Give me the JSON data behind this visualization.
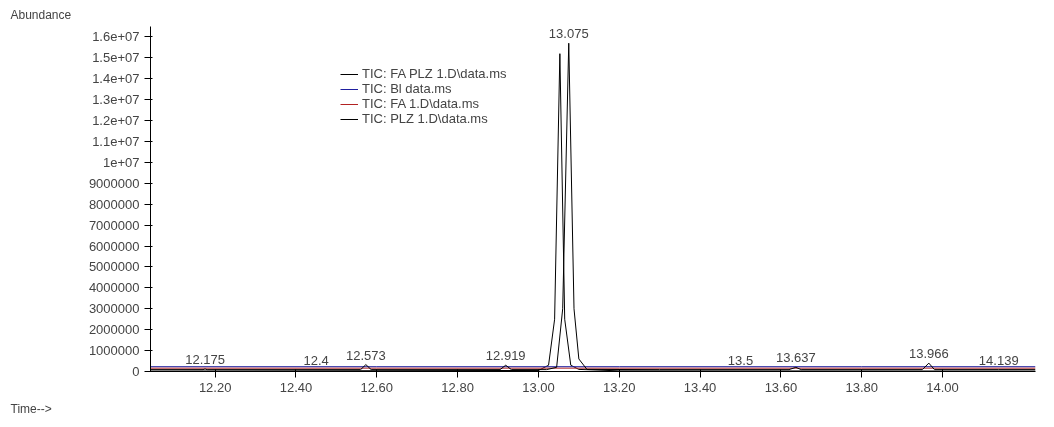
{
  "chart_data": {
    "type": "line",
    "xlabel": "Time-->",
    "series": [
      {
        "name": "TIC: FA PLZ 1.D\\data.ms",
        "color": "#000000",
        "x": [
          12.04,
          12.17,
          12.175,
          12.18,
          12.56,
          12.573,
          12.586,
          12.905,
          12.919,
          12.933,
          13.02,
          13.045,
          13.06,
          13.075,
          13.088,
          13.1,
          13.12,
          13.3,
          13.62,
          13.637,
          13.65,
          13.95,
          13.966,
          13.98,
          14.139,
          14.23
        ],
        "values": [
          90000,
          90000,
          120000,
          90000,
          90000,
          330000,
          90000,
          90000,
          300000,
          90000,
          90000,
          200000,
          3000000,
          15700000,
          3000000,
          600000,
          100000,
          90000,
          90000,
          200000,
          90000,
          90000,
          400000,
          90000,
          90000,
          90000
        ]
      },
      {
        "name": "TIC: Bl data.ms",
        "color": "#1f1f9f",
        "x": [
          12.04,
          12.6,
          13.2,
          13.8,
          14.23
        ],
        "values": [
          230000,
          230000,
          230000,
          230000,
          230000
        ]
      },
      {
        "name": "TIC: FA 1.D\\data.ms",
        "color": "#b22222",
        "x": [
          12.04,
          12.6,
          13.2,
          13.8,
          14.23
        ],
        "values": [
          160000,
          160000,
          160000,
          160000,
          160000
        ]
      },
      {
        "name": "TIC: PLZ 1.D\\data.ms",
        "color": "#000000",
        "x": [
          12.04,
          13.0,
          13.025,
          13.04,
          13.053,
          13.065,
          13.08,
          13.1,
          13.2,
          14.23
        ],
        "values": [
          20000,
          50000,
          300000,
          2500000,
          15200000,
          2500000,
          300000,
          100000,
          30000,
          20000
        ]
      }
    ],
    "xlim": [
      12.04,
      14.23
    ],
    "xticks": [
      {
        "value": 12.2,
        "label": "12.20"
      },
      {
        "value": 12.4,
        "label": "12.40"
      },
      {
        "value": 12.6,
        "label": "12.60"
      },
      {
        "value": 12.8,
        "label": "12.80"
      },
      {
        "value": 13.0,
        "label": "13.00"
      },
      {
        "value": 13.2,
        "label": "13.20"
      },
      {
        "value": 13.4,
        "label": "13.40"
      },
      {
        "value": 13.6,
        "label": "13.60"
      },
      {
        "value": 13.8,
        "label": "13.80"
      },
      {
        "value": 14.0,
        "label": "14.00"
      }
    ],
    "ylim": [
      0,
      16500000
    ],
    "yticks": [
      {
        "value": 0,
        "label": "0"
      },
      {
        "value": 1000000,
        "label": "1000000"
      },
      {
        "value": 2000000,
        "label": "2000000"
      },
      {
        "value": 3000000,
        "label": "3000000"
      },
      {
        "value": 4000000,
        "label": "4000000"
      },
      {
        "value": 5000000,
        "label": "5000000"
      },
      {
        "value": 6000000,
        "label": "6000000"
      },
      {
        "value": 7000000,
        "label": "7000000"
      },
      {
        "value": 8000000,
        "label": "8000000"
      },
      {
        "value": 9000000,
        "label": "9000000"
      },
      {
        "value": 10000000,
        "label": "1e+07"
      },
      {
        "value": 11000000,
        "label": "1.1e+07"
      },
      {
        "value": 12000000,
        "label": "1.2e+07"
      },
      {
        "value": 13000000,
        "label": "1.3e+07"
      },
      {
        "value": 14000000,
        "label": "1.4e+07"
      },
      {
        "value": 15000000,
        "label": "1.5e+07"
      },
      {
        "value": 16000000,
        "label": "1.6e+07"
      }
    ],
    "annotations": [
      "Abundance",
      {
        "text": "12.175",
        "x": 12.175,
        "y": 120000
      },
      {
        "text": "12.4",
        "x": 12.45,
        "y": 90000
      },
      {
        "text": "12.573",
        "x": 12.573,
        "y": 330000
      },
      {
        "text": "12.919",
        "x": 12.919,
        "y": 300000
      },
      {
        "text": "13.075",
        "x": 13.075,
        "y": 15700000
      },
      {
        "text": "13.5",
        "x": 13.5,
        "y": 90000
      },
      {
        "text": "13.637",
        "x": 13.637,
        "y": 200000
      },
      {
        "text": "13.966",
        "x": 13.966,
        "y": 400000
      },
      {
        "text": "14.139",
        "x": 14.139,
        "y": 90000
      }
    ],
    "legend": "top",
    "grid": false,
    "marker": "none",
    "line_style": "solid"
  }
}
